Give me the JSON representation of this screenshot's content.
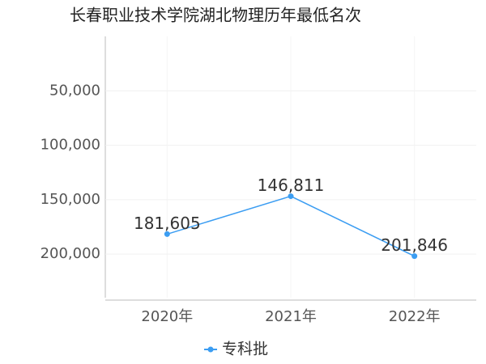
{
  "chart_data": {
    "type": "line",
    "title": "长春职业技术学院湖北物理历年最低名次",
    "categories": [
      "2020年",
      "2021年",
      "2022年"
    ],
    "series": [
      {
        "name": "专科批",
        "color": "#3b9df2",
        "values": [
          181605,
          146811,
          201846
        ],
        "value_labels": [
          "181,605",
          "146,811",
          "201,846"
        ]
      }
    ],
    "ylim": [
      0,
      240000
    ],
    "y_inverted": true,
    "yticks": [
      {
        "value": 50000,
        "label": "50,000"
      },
      {
        "value": 100000,
        "label": "100,000"
      },
      {
        "value": 150000,
        "label": "150,000"
      },
      {
        "value": 200000,
        "label": "200,000"
      }
    ],
    "grid": true,
    "legend": "bottom"
  }
}
